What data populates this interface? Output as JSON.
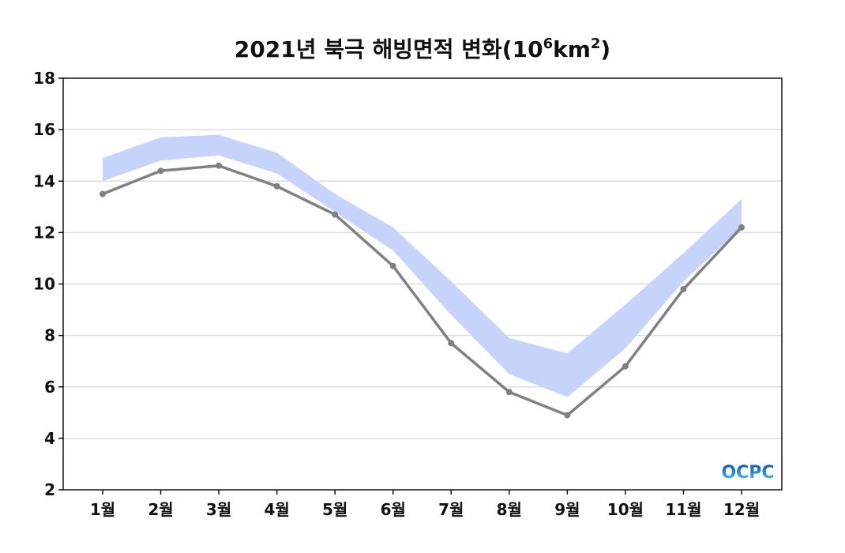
{
  "chart_data": {
    "type": "line",
    "title": "2021년 북극 해빙면적 변화(10",
    "title_sup1": "6",
    "title_mid": "km",
    "title_sup2": "2",
    "title_end": ")",
    "categories": [
      "1월",
      "2월",
      "3월",
      "4월",
      "5월",
      "6월",
      "7월",
      "8월",
      "9월",
      "10월",
      "11월",
      "12월"
    ],
    "ylim": [
      2,
      18
    ],
    "yticks": [
      2,
      4,
      6,
      8,
      10,
      12,
      14,
      16,
      18
    ],
    "grid": true,
    "series": [
      {
        "type": "line",
        "color": "#808080",
        "values": [
          13.5,
          14.4,
          14.6,
          13.8,
          12.7,
          10.7,
          7.7,
          5.8,
          4.9,
          6.8,
          9.8,
          12.2
        ]
      },
      {
        "type": "band",
        "color": "#c6d3fb",
        "upper": [
          14.9,
          15.7,
          15.8,
          15.1,
          13.5,
          12.2,
          10.1,
          7.9,
          7.3,
          9.2,
          11.2,
          13.3
        ],
        "lower": [
          14.0,
          14.8,
          15.0,
          14.3,
          12.8,
          11.3,
          8.8,
          6.5,
          5.6,
          7.5,
          10.1,
          12.2
        ]
      }
    ],
    "logo": "OCPC"
  }
}
